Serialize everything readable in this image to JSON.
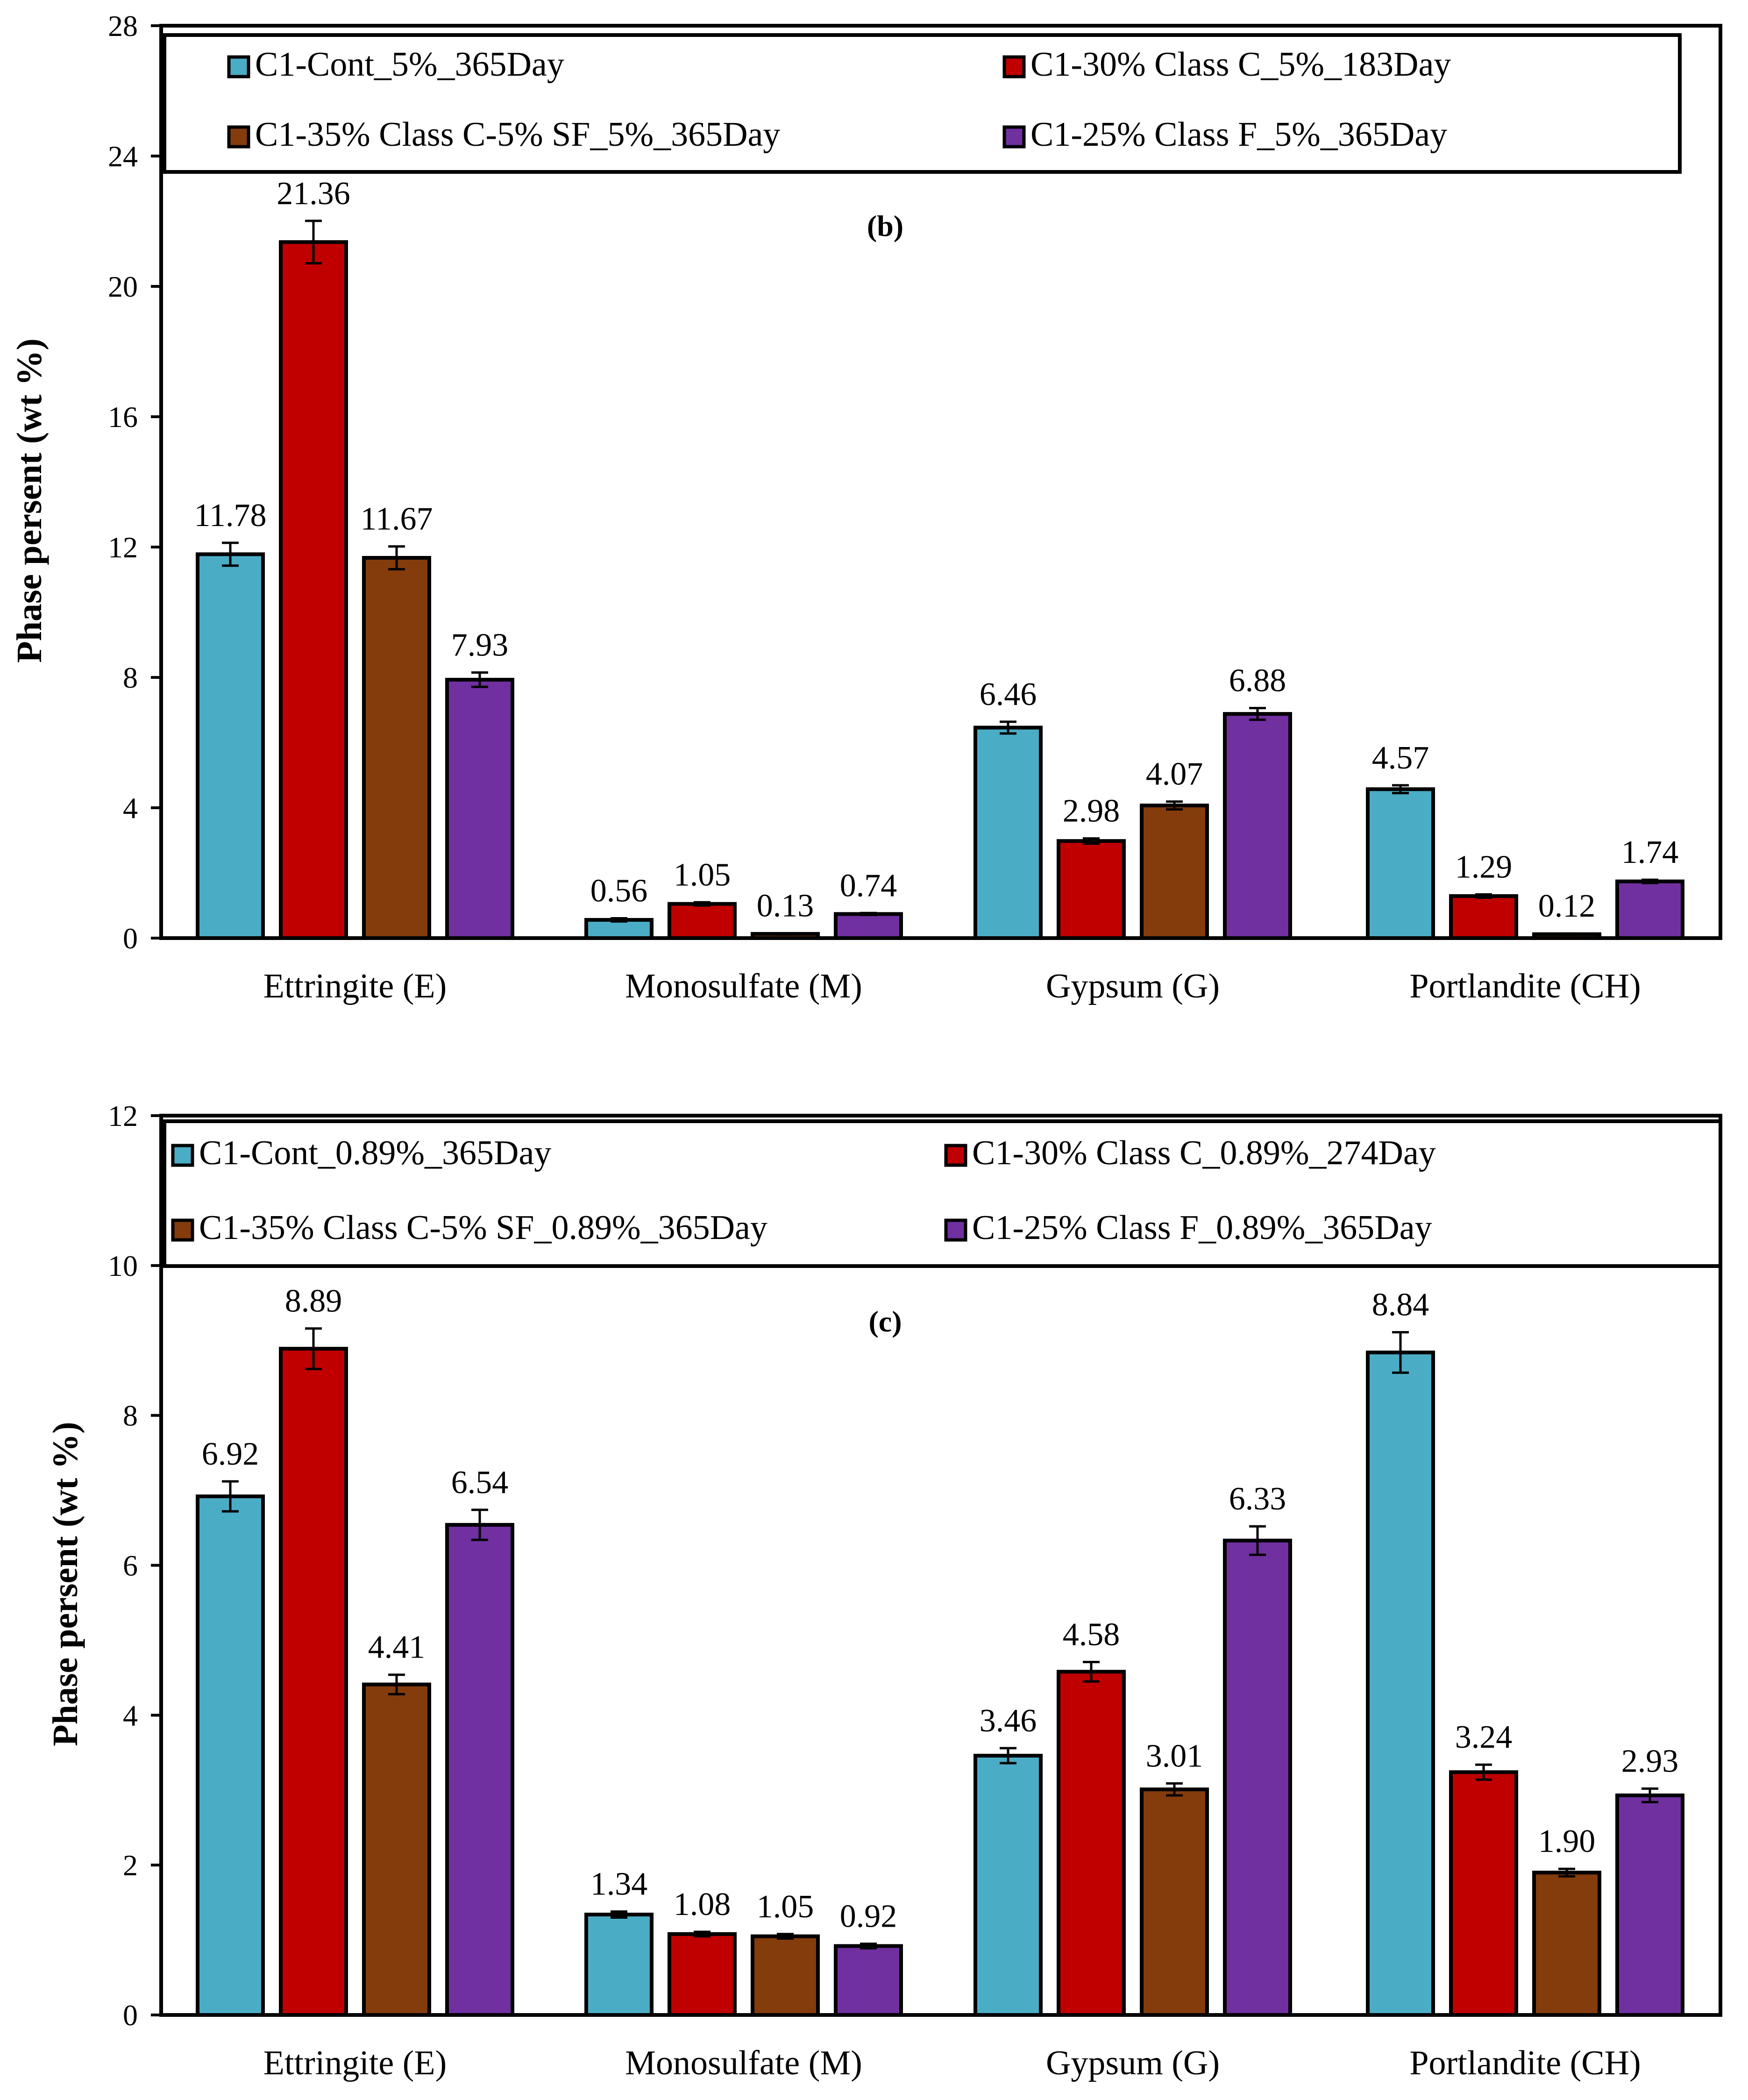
{
  "chart_data": [
    {
      "type": "bar",
      "panel_label": "(b)",
      "ylabel": "Phase persent (wt %)",
      "xlabel": "",
      "ylim": [
        0,
        28
      ],
      "yticks": [
        0,
        4,
        8,
        12,
        16,
        20,
        24,
        28
      ],
      "categories": [
        "Ettringite (E)",
        "Monosulfate (M)",
        "Gypsum (G)",
        "Portlandite (CH)"
      ],
      "series": [
        {
          "name": "C1-Cont_5%_365Day",
          "color": "#4bacc6",
          "values": [
            11.78,
            0.56,
            6.46,
            4.57
          ],
          "labels": [
            "11.78",
            "0.56",
            "6.46",
            "4.57"
          ],
          "errors": [
            0.35,
            0.05,
            0.18,
            0.12
          ]
        },
        {
          "name": "C1-30% Class C_5%_183Day",
          "color": "#c00000",
          "values": [
            21.36,
            1.05,
            2.98,
            1.29
          ],
          "labels": [
            "21.36",
            "1.05",
            "2.98",
            "1.29"
          ],
          "errors": [
            0.65,
            0.05,
            0.08,
            0.05
          ]
        },
        {
          "name": "C1-35% Class C-5% SF_5%_365Day",
          "color": "#843c0c",
          "values": [
            11.67,
            0.13,
            4.07,
            0.12
          ],
          "labels": [
            "11.67",
            "0.13",
            "4.07",
            "0.12"
          ],
          "errors": [
            0.35,
            0.02,
            0.12,
            0.02
          ]
        },
        {
          "name": "C1-25% Class F_5%_365Day",
          "color": "#7030a0",
          "values": [
            7.93,
            0.74,
            6.88,
            1.74
          ],
          "labels": [
            "7.93",
            "0.74",
            "6.88",
            "1.74"
          ],
          "errors": [
            0.22,
            0.03,
            0.18,
            0.05
          ]
        }
      ],
      "legend_position": "top",
      "grid": false
    },
    {
      "type": "bar",
      "panel_label": "(c)",
      "ylabel": "Phase persent (wt %)",
      "xlabel": "",
      "ylim": [
        0,
        12
      ],
      "yticks": [
        0,
        2,
        4,
        6,
        8,
        10,
        12
      ],
      "categories": [
        "Ettringite (E)",
        "Monosulfate (M)",
        "Gypsum (G)",
        "Portlandite (CH)"
      ],
      "series": [
        {
          "name": "C1-Cont_0.89%_365Day",
          "color": "#4bacc6",
          "values": [
            6.92,
            1.34,
            3.46,
            8.84
          ],
          "labels": [
            "6.92",
            "1.34",
            "3.46",
            "8.84"
          ],
          "errors": [
            0.2,
            0.04,
            0.1,
            0.27
          ]
        },
        {
          "name": "C1-30% Class C_0.89%_274Day",
          "color": "#c00000",
          "values": [
            8.89,
            1.08,
            4.58,
            3.24
          ],
          "labels": [
            "8.89",
            "1.08",
            "4.58",
            "3.24"
          ],
          "errors": [
            0.27,
            0.03,
            0.13,
            0.1
          ]
        },
        {
          "name": "C1-35% Class C-5% SF_0.89%_365Day",
          "color": "#843c0c",
          "values": [
            4.41,
            1.05,
            3.01,
            1.9
          ],
          "labels": [
            "4.41",
            "1.05",
            "3.01",
            "1.90"
          ],
          "errors": [
            0.13,
            0.03,
            0.08,
            0.05
          ]
        },
        {
          "name": "C1-25% Class F_0.89%_365Day",
          "color": "#7030a0",
          "values": [
            6.54,
            0.92,
            6.33,
            2.93
          ],
          "labels": [
            "6.54",
            "0.92",
            "6.33",
            "2.93"
          ],
          "errors": [
            0.2,
            0.03,
            0.19,
            0.09
          ]
        }
      ],
      "legend_position": "top",
      "grid": false
    }
  ]
}
